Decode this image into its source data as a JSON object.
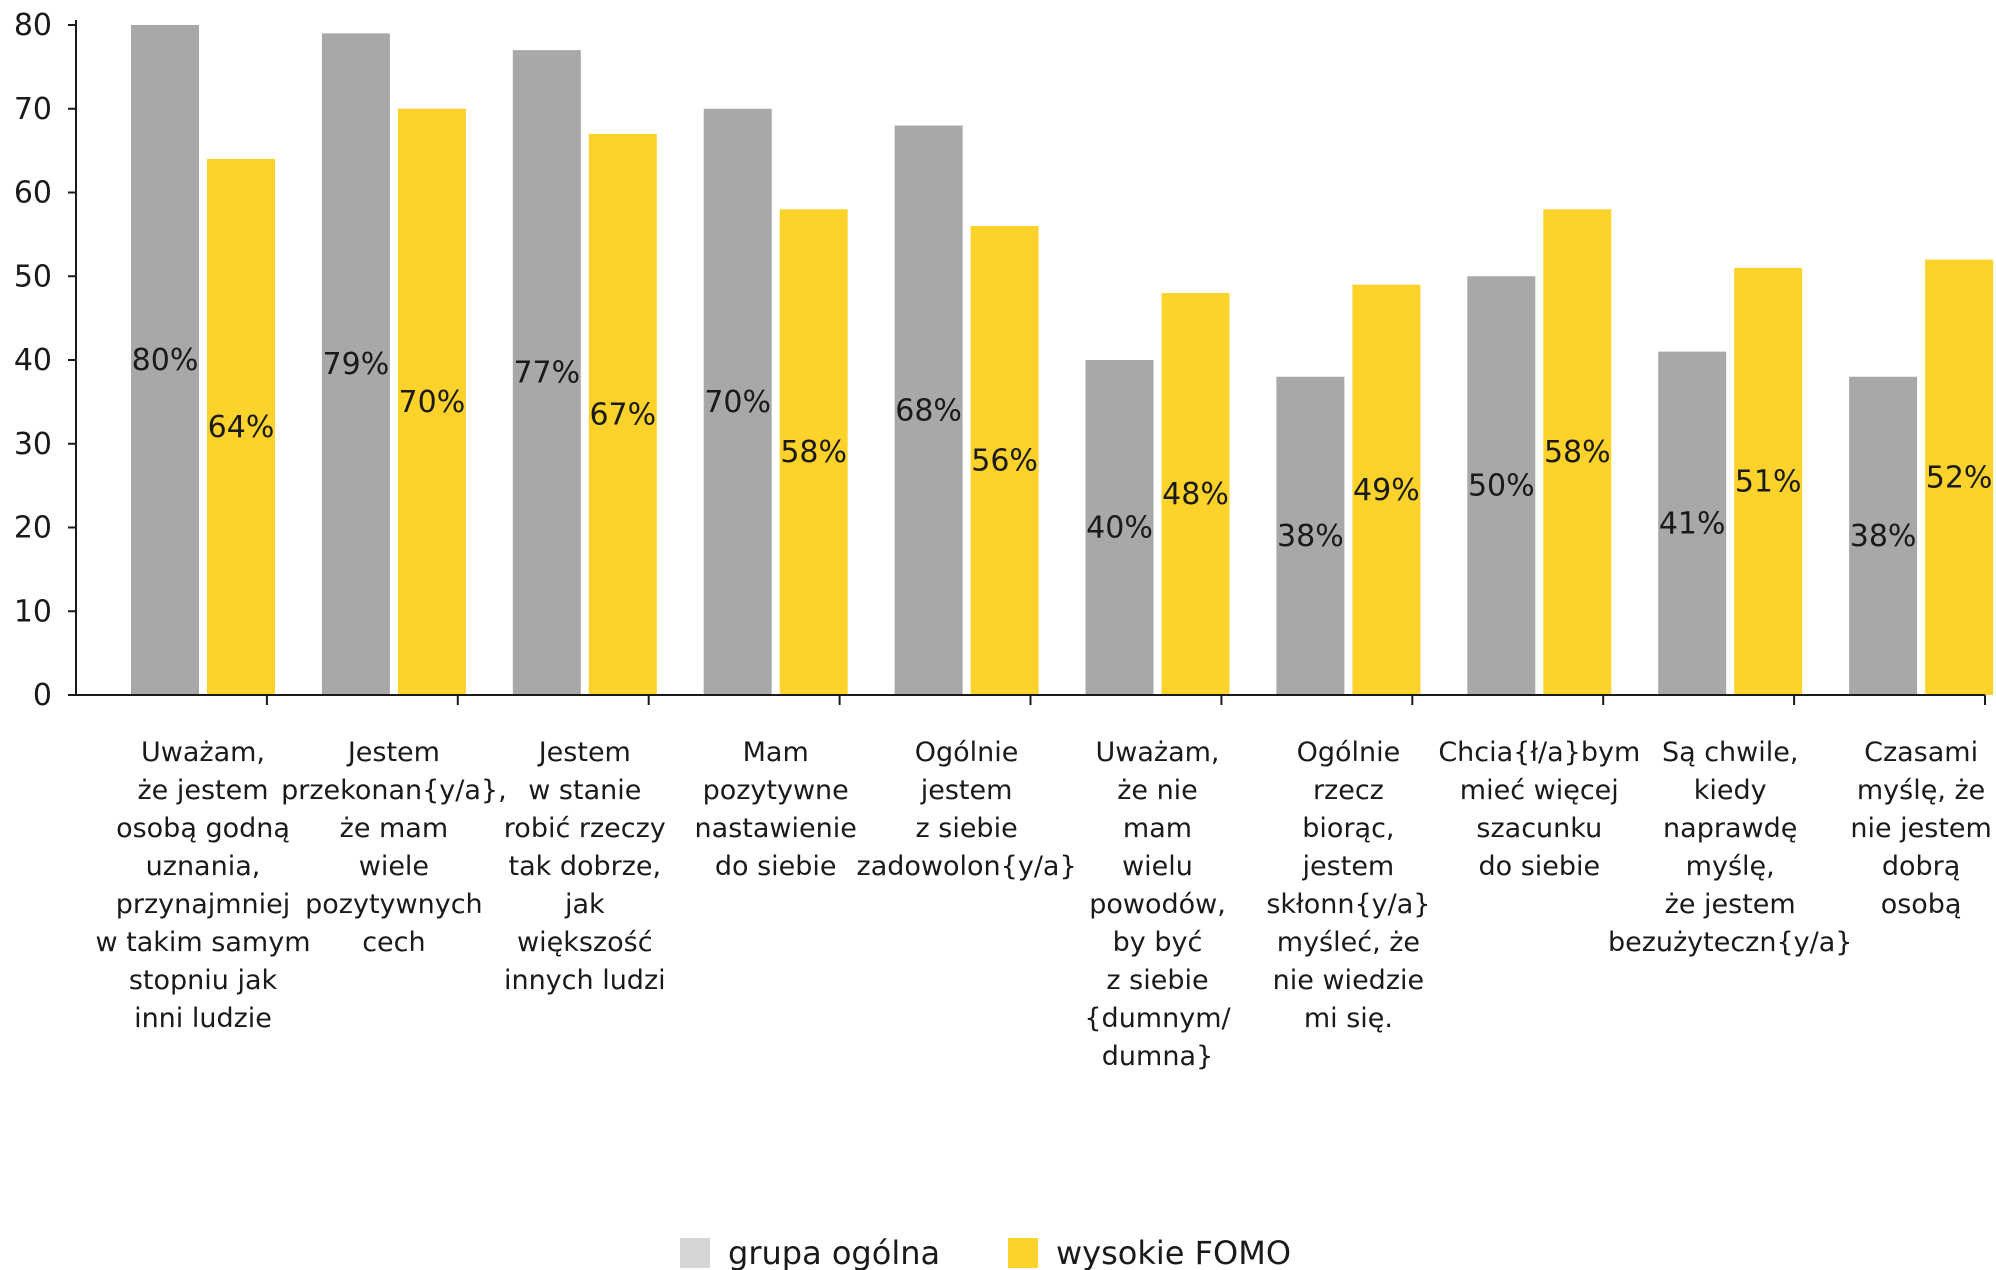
{
  "chart_data": {
    "type": "bar",
    "ylim": [
      0,
      80
    ],
    "yticks": [
      0,
      10,
      20,
      30,
      40,
      50,
      60,
      70,
      80
    ],
    "grid": false,
    "legend_position": "bottom-center",
    "categories": [
      [
        "Uważam,",
        "że jestem",
        "osobą godną",
        "uznania,",
        "przynajmniej",
        "w takim samym",
        "stopniu jak",
        "inni ludzie"
      ],
      [
        "Jestem",
        "przekonan{y/a},",
        "że mam",
        "wiele",
        "pozytywnych",
        "cech"
      ],
      [
        "Jestem",
        "w stanie",
        "robić rzeczy",
        "tak dobrze,",
        "jak",
        "większość",
        "innych ludzi"
      ],
      [
        "Mam",
        "pozytywne",
        "nastawienie",
        "do siebie"
      ],
      [
        "Ogólnie",
        "jestem",
        "z siebie",
        "zadowolon{y/a}"
      ],
      [
        "Uważam,",
        "że nie",
        "mam",
        "wielu",
        "powodów,",
        "by być",
        "z siebie",
        "{dumnym/",
        "dumna}"
      ],
      [
        "Ogólnie",
        "rzecz",
        "biorąc,",
        "jestem",
        "skłonn{y/a}",
        "myśleć, że",
        "nie wiedzie",
        "mi się."
      ],
      [
        "Chcia{ł/a}bym",
        "mieć więcej",
        "szacunku",
        "do siebie"
      ],
      [
        "Są chwile,",
        "kiedy",
        "naprawdę",
        "myślę,",
        "że jestem",
        "bezużyteczn{y/a}"
      ],
      [
        "Czasami",
        "myślę, że",
        "nie jestem",
        "dobrą",
        "osobą"
      ]
    ],
    "series": [
      {
        "name": "grupa ogólna",
        "color": "#a7a8aa",
        "values": [
          80,
          79,
          77,
          70,
          68,
          40,
          38,
          50,
          41,
          38
        ],
        "labels": [
          "80%",
          "79%",
          "77%",
          "70%",
          "68%",
          "40%",
          "38%",
          "50%",
          "41%",
          "38%"
        ]
      },
      {
        "name": "wysokie FOMO",
        "color": "#fdd22b",
        "values": [
          64,
          70,
          67,
          58,
          56,
          48,
          49,
          58,
          51,
          52
        ],
        "labels": [
          "64%",
          "70%",
          "67%",
          "58%",
          "56%",
          "48%",
          "49%",
          "58%",
          "51%",
          "52%"
        ]
      }
    ],
    "legend_swatch_colors": [
      "#d6d6d6",
      "#fdd22b"
    ]
  }
}
